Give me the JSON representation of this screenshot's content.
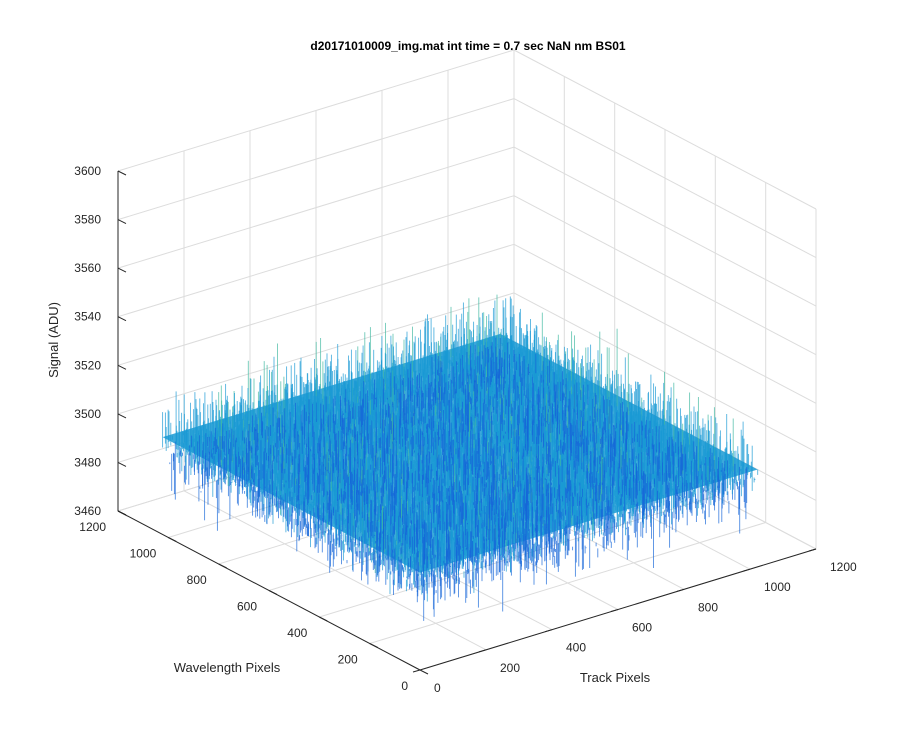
{
  "chart_data": {
    "type": "surface",
    "title": "d20171010009_img.mat int time = 0.7 sec  NaN nm BS01",
    "xlabel": "Track Pixels",
    "ylabel": "Wavelength Pixels",
    "zlabel": "Signal (ADU)",
    "xlim": [
      0,
      1200
    ],
    "ylim": [
      0,
      1200
    ],
    "zlim": [
      3460,
      3600
    ],
    "xticks": [
      0,
      200,
      400,
      600,
      800,
      1000,
      1200
    ],
    "yticks": [
      0,
      200,
      400,
      600,
      800,
      1000,
      1200
    ],
    "zticks": [
      3460,
      3480,
      3500,
      3520,
      3540,
      3560,
      3580,
      3600
    ],
    "xtick_labels": [
      "0",
      "200",
      "400",
      "600",
      "800",
      "1000",
      "1200"
    ],
    "ytick_labels": [
      "0",
      "200",
      "400",
      "600",
      "800",
      "1000",
      "1200"
    ],
    "ztick_labels": [
      "3460",
      "3480",
      "3500",
      "3520",
      "3540",
      "3560",
      "3580",
      "3600"
    ],
    "data_extent": {
      "x": [
        1,
        1024
      ],
      "y": [
        1,
        1024
      ]
    },
    "signal_mean": 3500,
    "signal_noise_range": [
      3470,
      3540
    ],
    "grid": true,
    "colors": {
      "surface_low": "#1565d8",
      "surface_mid": "#1a9ad4",
      "surface_high": "#3fb8a0",
      "axes": "#262626",
      "grid": "#dcdcdc"
    }
  }
}
